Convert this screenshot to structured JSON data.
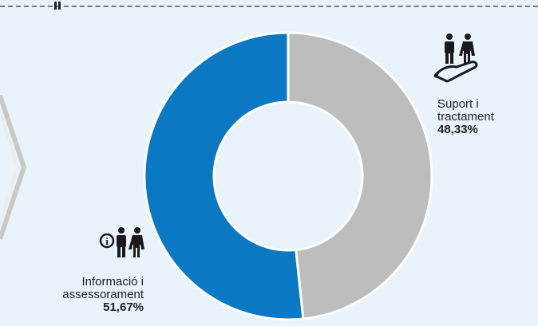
{
  "chart_data": {
    "type": "pie",
    "variant": "donut",
    "slices": [
      {
        "name": "Suport i tractament",
        "value": 48.33,
        "label": "Suport i\ntractament",
        "value_label": "48,33%",
        "color": "#bdbdbd",
        "icon": "people-on-hand-icon"
      },
      {
        "name": "Informació i assessorament",
        "value": 51.67,
        "label": "Informació i\nassessorament",
        "value_label": "51,67%",
        "color": "#0a78c2",
        "icon": "people-with-info-icon"
      }
    ]
  },
  "colors": {
    "background": "#e8f3fb",
    "slice_separator": "#ffffff",
    "icon": "#1a1a1a",
    "arrow_outline": "#cfcfcf"
  }
}
